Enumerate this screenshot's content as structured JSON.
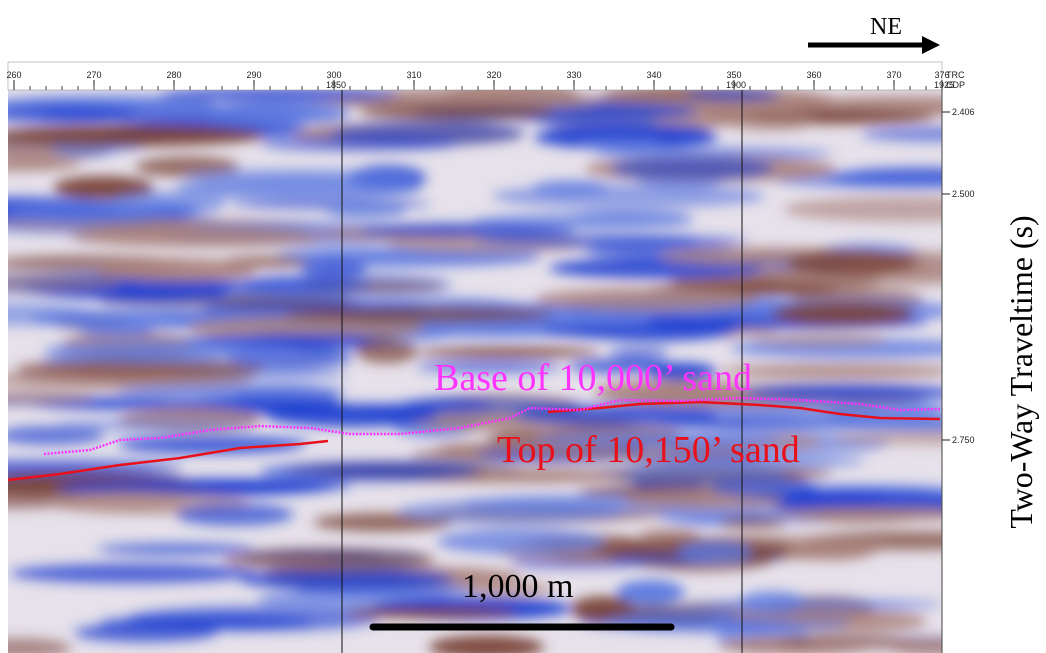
{
  "direction_label": "NE",
  "top_axis": {
    "trace_ticks": [
      260,
      270,
      280,
      290,
      300,
      310,
      320,
      330,
      340,
      350,
      360,
      370,
      376
    ],
    "trace_label": "TRC",
    "cdp_ticks": [
      {
        "trace": 300,
        "cdp": 1850
      },
      {
        "trace": 350,
        "cdp": 1900
      },
      {
        "trace": 376,
        "cdp": 1925
      }
    ],
    "cdp_label": "CDP"
  },
  "right_axis": {
    "ticks": [
      2.406,
      {
        "value": 2.5,
        "label": "2.500"
      },
      {
        "value": 2.75,
        "label": "2.750"
      }
    ],
    "title": "Two-Way Traveltime (s)"
  },
  "annotations": {
    "base_horizon": "Base of 10,000’ sand",
    "top_horizon": "Top of 10,150’ sand",
    "scale_bar": "1,000 m"
  }
}
